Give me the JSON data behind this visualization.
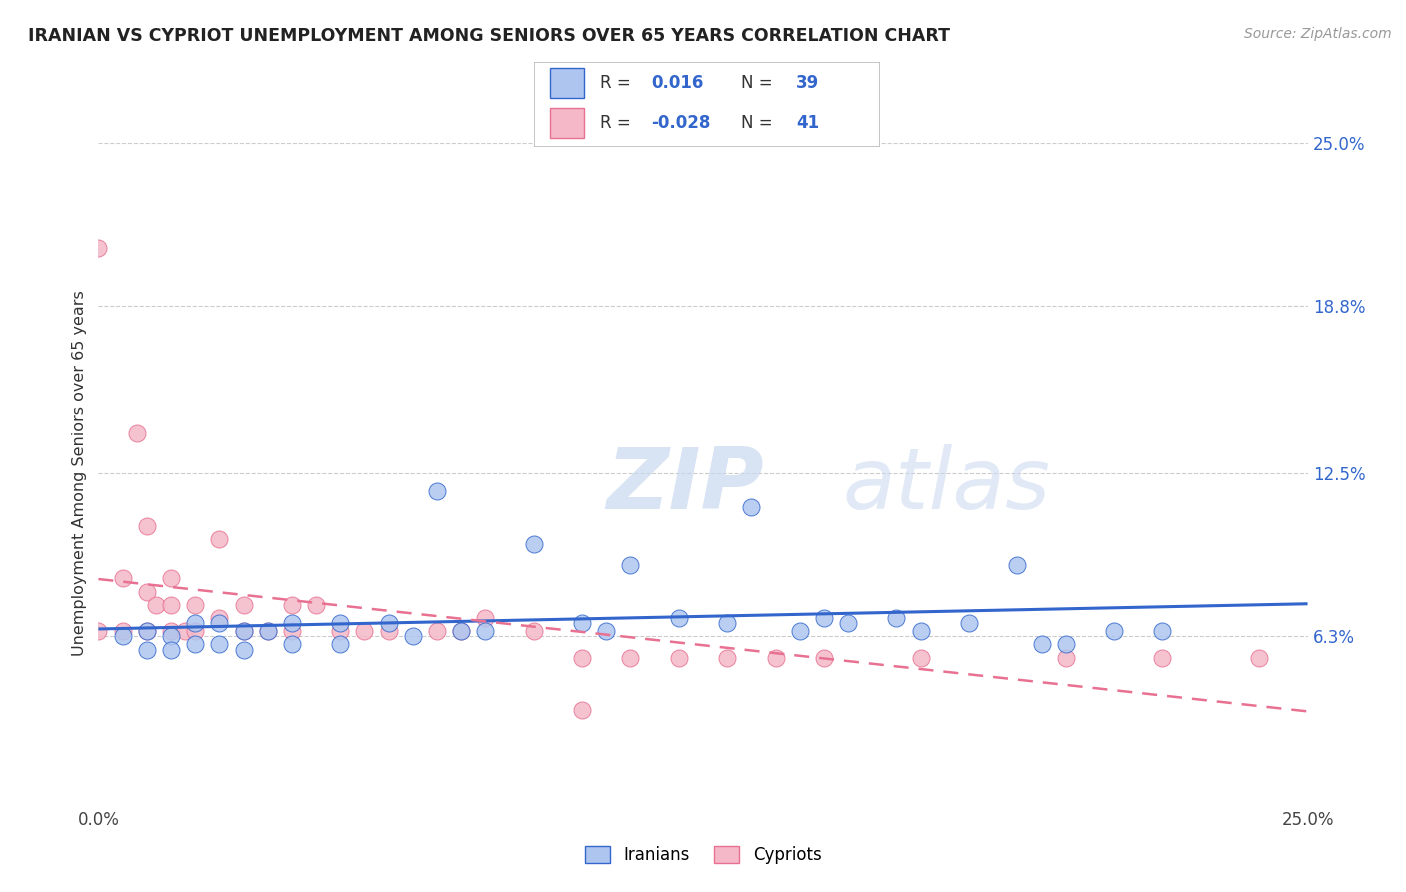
{
  "title": "IRANIAN VS CYPRIOT UNEMPLOYMENT AMONG SENIORS OVER 65 YEARS CORRELATION CHART",
  "source": "Source: ZipAtlas.com",
  "ylabel": "Unemployment Among Seniors over 65 years",
  "xlim": [
    0.0,
    0.25
  ],
  "ylim": [
    0.0,
    0.25
  ],
  "y_tick_labels_right": [
    "25.0%",
    "18.8%",
    "12.5%",
    "6.3%"
  ],
  "y_tick_positions_right": [
    0.25,
    0.188,
    0.125,
    0.063
  ],
  "background_color": "#ffffff",
  "grid_color": "#cccccc",
  "iranian_color": "#aec6ef",
  "cypriot_color": "#f4b8c8",
  "iranian_line_color": "#3366cc",
  "cypriot_line_color": "#e87090",
  "watermark_zip": "ZIP",
  "watermark_atlas": "atlas",
  "iranians_label": "Iranians",
  "cypriots_label": "Cypriots",
  "iranian_x": [
    0.005,
    0.01,
    0.01,
    0.015,
    0.015,
    0.02,
    0.02,
    0.025,
    0.025,
    0.03,
    0.03,
    0.035,
    0.04,
    0.04,
    0.05,
    0.05,
    0.06,
    0.065,
    0.07,
    0.075,
    0.08,
    0.09,
    0.1,
    0.105,
    0.11,
    0.12,
    0.13,
    0.135,
    0.145,
    0.15,
    0.155,
    0.165,
    0.17,
    0.18,
    0.19,
    0.195,
    0.2,
    0.21,
    0.22
  ],
  "iranian_y": [
    0.063,
    0.065,
    0.058,
    0.063,
    0.058,
    0.068,
    0.06,
    0.068,
    0.06,
    0.065,
    0.058,
    0.065,
    0.068,
    0.06,
    0.068,
    0.06,
    0.068,
    0.063,
    0.118,
    0.065,
    0.065,
    0.098,
    0.068,
    0.065,
    0.09,
    0.07,
    0.068,
    0.112,
    0.065,
    0.07,
    0.068,
    0.07,
    0.065,
    0.068,
    0.09,
    0.06,
    0.06,
    0.065,
    0.065
  ],
  "cypriot_x": [
    0.0,
    0.0,
    0.005,
    0.005,
    0.008,
    0.01,
    0.01,
    0.01,
    0.012,
    0.015,
    0.015,
    0.015,
    0.018,
    0.02,
    0.02,
    0.025,
    0.025,
    0.03,
    0.03,
    0.035,
    0.04,
    0.04,
    0.045,
    0.05,
    0.055,
    0.06,
    0.07,
    0.075,
    0.08,
    0.09,
    0.1,
    0.1,
    0.11,
    0.12,
    0.13,
    0.14,
    0.15,
    0.17,
    0.2,
    0.22,
    0.24
  ],
  "cypriot_y": [
    0.21,
    0.065,
    0.085,
    0.065,
    0.14,
    0.105,
    0.08,
    0.065,
    0.075,
    0.085,
    0.075,
    0.065,
    0.065,
    0.075,
    0.065,
    0.1,
    0.07,
    0.075,
    0.065,
    0.065,
    0.075,
    0.065,
    0.075,
    0.065,
    0.065,
    0.065,
    0.065,
    0.065,
    0.07,
    0.065,
    0.035,
    0.055,
    0.055,
    0.055,
    0.055,
    0.055,
    0.055,
    0.055,
    0.055,
    0.055,
    0.055
  ]
}
